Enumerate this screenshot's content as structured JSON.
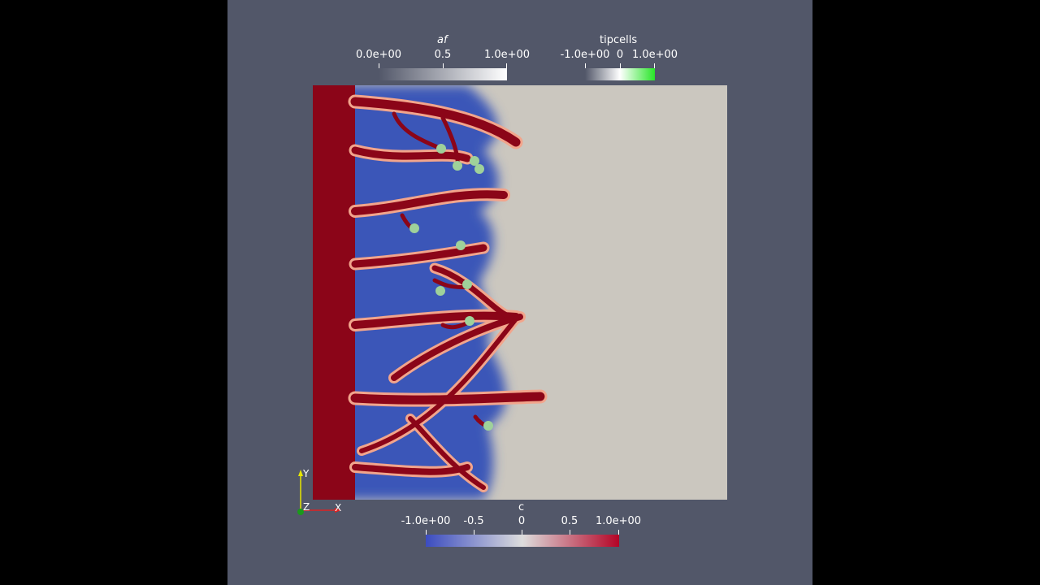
{
  "scalar_bars": {
    "af": {
      "title": "af",
      "labels": [
        "0.0e+00",
        "0.5",
        "1.0e+00"
      ],
      "colors": [
        "#525769",
        "#ffffff"
      ]
    },
    "tipcells": {
      "title": "tipcells",
      "labels": [
        "-1.0e+00",
        "0",
        "1.0e+00"
      ],
      "colors": [
        "#525769",
        "#ffffff",
        "#28e628"
      ]
    },
    "c": {
      "title": "c",
      "labels": [
        "-1.0e+00",
        "-0.5",
        "0",
        "0.5",
        "1.0e+00"
      ],
      "colors": [
        "#3b4cc0",
        "#dddddd",
        "#b40426"
      ]
    }
  },
  "axes": {
    "x_label": "X",
    "y_label": "Y",
    "z_label": "Z"
  },
  "colors": {
    "background": "#525769",
    "vessel": "#8b0518",
    "tissue": "#3b56b8",
    "domain": "#cbc7bf",
    "tip_cell": "#9fd19a"
  }
}
